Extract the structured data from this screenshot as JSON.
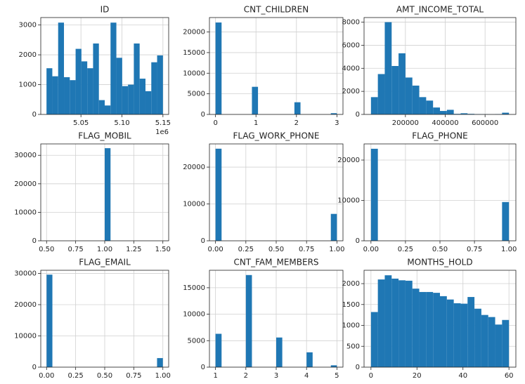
{
  "chart_data": [
    {
      "type": "histogram",
      "title": "ID",
      "color": "#1f77b4",
      "grid": true,
      "x_offset_label": "1e6",
      "bins": [
        5.008,
        5.0151,
        5.0222,
        5.0293,
        5.0364,
        5.0435,
        5.0506,
        5.0577,
        5.0648,
        5.0719,
        5.079,
        5.0861,
        5.0932,
        5.1003,
        5.1074,
        5.1145,
        5.1216,
        5.1287,
        5.1358,
        5.1429,
        5.15
      ],
      "counts": [
        1550,
        1280,
        3080,
        1250,
        1150,
        2200,
        1780,
        1550,
        2380,
        480,
        300,
        3080,
        1900,
        950,
        1000,
        2380,
        1200,
        780,
        1750,
        1980
      ],
      "xlim": [
        5.001,
        5.157
      ],
      "xticks": [
        5.05,
        {
          "value": 5.1,
          "label": "5.10"
        },
        5.15
      ],
      "ylim": [
        0,
        3250
      ],
      "yticks": [
        0,
        1000,
        2000,
        3000
      ]
    },
    {
      "type": "histogram",
      "title": "CNT_CHILDREN",
      "color": "#1f77b4",
      "grid": true,
      "bins": [
        0,
        0.15,
        0.3,
        0.45,
        0.6,
        0.75,
        0.9,
        1.05,
        1.2,
        1.35,
        1.5,
        1.65,
        1.8,
        1.95,
        2.1,
        2.25,
        2.4,
        2.55,
        2.7,
        2.85,
        3
      ],
      "counts": [
        22300,
        0,
        0,
        0,
        0,
        0,
        6700,
        0,
        0,
        0,
        0,
        0,
        0,
        2950,
        0,
        0,
        0,
        0,
        0,
        300
      ],
      "xlim": [
        -0.15,
        3.15
      ],
      "xticks": [
        0,
        1,
        2,
        3
      ],
      "ylim": [
        0,
        23500
      ],
      "yticks": [
        0,
        5000,
        10000,
        15000,
        20000
      ]
    },
    {
      "type": "histogram",
      "title": "AMT_INCOME_TOTAL",
      "color": "#1f77b4",
      "grid": true,
      "bins": [
        27000,
        61650,
        96300,
        130950,
        165600,
        200250,
        234900,
        269550,
        304200,
        338850,
        373500,
        408150,
        442800,
        477450,
        512100,
        546750,
        581400,
        616050,
        650700,
        685350,
        720000
      ],
      "counts": [
        1500,
        3500,
        8000,
        4200,
        5300,
        3200,
        2500,
        1500,
        1200,
        600,
        300,
        400,
        50,
        100,
        50,
        30,
        20,
        10,
        30,
        150
      ],
      "xlim": [
        -7650,
        754650
      ],
      "xticks": [
        200000,
        400000,
        600000
      ],
      "ylim": [
        0,
        8400
      ],
      "yticks": [
        0,
        2000,
        4000,
        6000,
        8000
      ]
    },
    {
      "type": "histogram",
      "title": "FLAG_MOBIL",
      "color": "#1f77b4",
      "grid": true,
      "bins": [
        0.5,
        0.55,
        0.6,
        0.65,
        0.7,
        0.75,
        0.8,
        0.85,
        0.9,
        0.95,
        1.0,
        1.05,
        1.1,
        1.15,
        1.2,
        1.25,
        1.3,
        1.35,
        1.4,
        1.45,
        1.5
      ],
      "counts": [
        0,
        0,
        0,
        0,
        0,
        0,
        0,
        0,
        0,
        0,
        32500,
        0,
        0,
        0,
        0,
        0,
        0,
        0,
        0,
        0
      ],
      "xlim": [
        0.45,
        1.55
      ],
      "xticks": [
        {
          "value": 0.5,
          "label": "0.50"
        },
        0.75,
        {
          "value": 1,
          "label": "1.00"
        },
        1.25,
        {
          "value": 1.5,
          "label": "1.50"
        }
      ],
      "ylim": [
        0,
        34000
      ],
      "yticks": [
        0,
        10000,
        20000,
        30000
      ]
    },
    {
      "type": "histogram",
      "title": "FLAG_WORK_PHONE",
      "color": "#1f77b4",
      "grid": true,
      "bins": [
        0,
        0.05,
        0.1,
        0.15,
        0.2,
        0.25,
        0.3,
        0.35,
        0.4,
        0.45,
        0.5,
        0.55,
        0.6,
        0.65,
        0.7,
        0.75,
        0.8,
        0.85,
        0.9,
        0.95,
        1
      ],
      "counts": [
        25000,
        0,
        0,
        0,
        0,
        0,
        0,
        0,
        0,
        0,
        0,
        0,
        0,
        0,
        0,
        0,
        0,
        0,
        0,
        7300
      ],
      "xlim": [
        -0.05,
        1.05
      ],
      "xticks": [
        {
          "value": 0,
          "label": "0.00"
        },
        0.25,
        {
          "value": 0.5,
          "label": "0.50"
        },
        0.75,
        {
          "value": 1,
          "label": "1.00"
        }
      ],
      "ylim": [
        0,
        26300
      ],
      "yticks": [
        0,
        10000,
        20000
      ]
    },
    {
      "type": "histogram",
      "title": "FLAG_PHONE",
      "color": "#1f77b4",
      "grid": true,
      "bins": [
        0,
        0.05,
        0.1,
        0.15,
        0.2,
        0.25,
        0.3,
        0.35,
        0.4,
        0.45,
        0.5,
        0.55,
        0.6,
        0.65,
        0.7,
        0.75,
        0.8,
        0.85,
        0.9,
        0.95,
        1
      ],
      "counts": [
        22800,
        0,
        0,
        0,
        0,
        0,
        0,
        0,
        0,
        0,
        0,
        0,
        0,
        0,
        0,
        0,
        0,
        0,
        0,
        9600
      ],
      "xlim": [
        -0.05,
        1.05
      ],
      "xticks": [
        {
          "value": 0,
          "label": "0.00"
        },
        0.25,
        {
          "value": 0.5,
          "label": "0.50"
        },
        0.75,
        {
          "value": 1,
          "label": "1.00"
        }
      ],
      "ylim": [
        0,
        24000
      ],
      "yticks": [
        0,
        10000,
        20000
      ]
    },
    {
      "type": "histogram",
      "title": "FLAG_EMAIL",
      "color": "#1f77b4",
      "grid": true,
      "bins": [
        0,
        0.05,
        0.1,
        0.15,
        0.2,
        0.25,
        0.3,
        0.35,
        0.4,
        0.45,
        0.5,
        0.55,
        0.6,
        0.65,
        0.7,
        0.75,
        0.8,
        0.85,
        0.9,
        0.95,
        1
      ],
      "counts": [
        29600,
        0,
        0,
        0,
        0,
        0,
        0,
        0,
        0,
        0,
        0,
        0,
        0,
        0,
        0,
        0,
        0,
        0,
        0,
        2900
      ],
      "xlim": [
        -0.05,
        1.05
      ],
      "xticks": [
        {
          "value": 0,
          "label": "0.00"
        },
        0.25,
        {
          "value": 0.5,
          "label": "0.50"
        },
        0.75,
        {
          "value": 1,
          "label": "1.00"
        }
      ],
      "ylim": [
        0,
        31000
      ],
      "yticks": [
        0,
        10000,
        20000,
        30000
      ]
    },
    {
      "type": "histogram",
      "title": "CNT_FAM_MEMBERS",
      "color": "#1f77b4",
      "grid": true,
      "bins": [
        1,
        1.2,
        1.4,
        1.6,
        1.8,
        2,
        2.2,
        2.4,
        2.6,
        2.8,
        3,
        3.2,
        3.4,
        3.6,
        3.8,
        4,
        4.2,
        4.4,
        4.6,
        4.8,
        5
      ],
      "counts": [
        6300,
        0,
        0,
        0,
        0,
        17400,
        0,
        0,
        0,
        0,
        5600,
        0,
        0,
        0,
        0,
        2800,
        0,
        0,
        0,
        350
      ],
      "xlim": [
        0.8,
        5.2
      ],
      "xticks": [
        1,
        2,
        3,
        4,
        5
      ],
      "ylim": [
        0,
        18300
      ],
      "yticks": [
        0,
        5000,
        10000,
        15000
      ]
    },
    {
      "type": "histogram",
      "title": "MONTHS_HOLD",
      "color": "#1f77b4",
      "grid": true,
      "bins": [
        0,
        3,
        6,
        9,
        12,
        15,
        18,
        21,
        24,
        27,
        30,
        33,
        36,
        39,
        42,
        45,
        48,
        51,
        54,
        57,
        60
      ],
      "counts": [
        1320,
        2100,
        2200,
        2120,
        2080,
        2070,
        1880,
        1800,
        1800,
        1780,
        1700,
        1620,
        1530,
        1520,
        1680,
        1400,
        1250,
        1200,
        1020,
        1130
      ],
      "xlim": [
        -3,
        63
      ],
      "xticks": [
        0,
        20,
        40,
        60
      ],
      "ylim": [
        0,
        2320
      ],
      "yticks": [
        0,
        500,
        1000,
        1500,
        2000
      ]
    }
  ]
}
